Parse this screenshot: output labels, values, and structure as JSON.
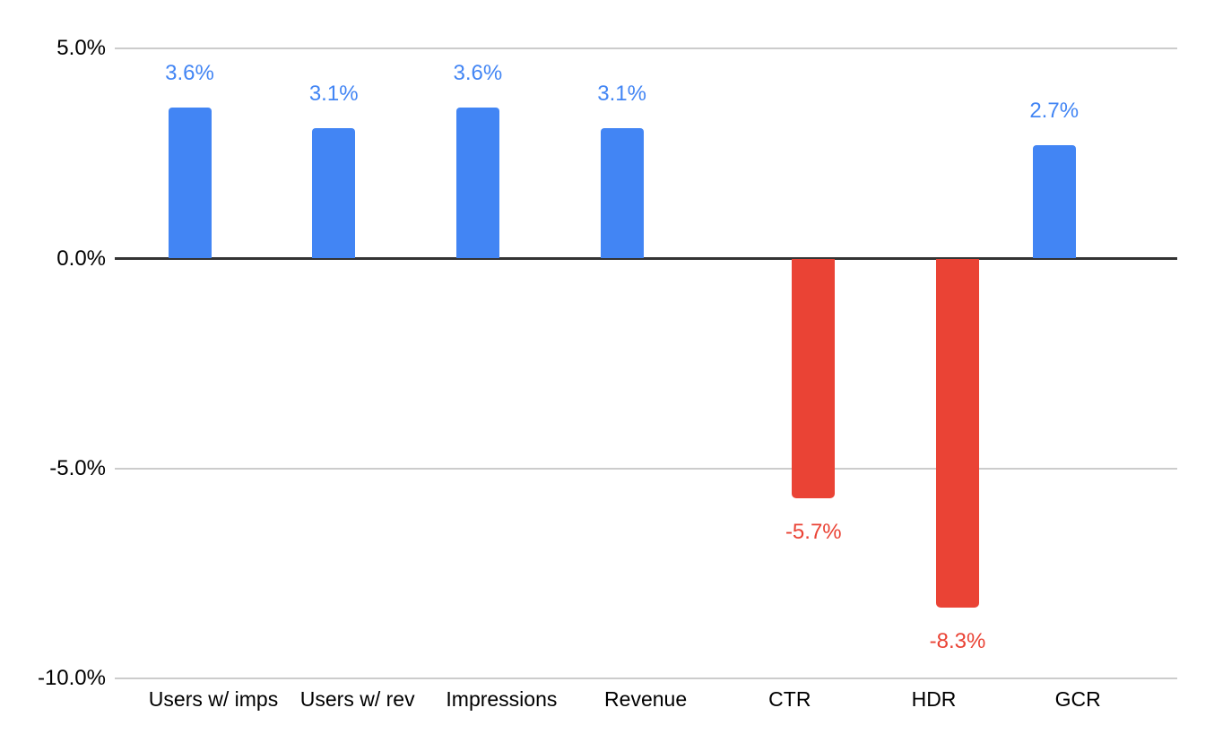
{
  "chart_data": {
    "type": "bar",
    "title": "",
    "xlabel": "",
    "ylabel": "",
    "categories": [
      "Users w/ imps",
      "Users w/ rev",
      "Impressions",
      "Revenue",
      "CTR",
      "HDR",
      "GCR"
    ],
    "values": [
      3.6,
      3.1,
      3.6,
      3.1,
      -5.7,
      -8.3,
      2.7
    ],
    "value_labels": [
      "3.6%",
      "3.1%",
      "3.6%",
      "3.1%",
      "-5.7%",
      "-8.3%",
      "2.7%"
    ],
    "ylim": [
      -10,
      5
    ],
    "y_ticks": [
      {
        "label": "5.0%",
        "value": 5
      },
      {
        "label": "0.0%",
        "value": 0
      },
      {
        "label": "-5.0%",
        "value": -5
      },
      {
        "label": "-10.0%",
        "value": -10
      }
    ],
    "grid": true,
    "legend": "none",
    "annotations": "value labels beside each bar, colored to match series",
    "colors": {
      "positive": "#4285F4",
      "negative": "#EA4335",
      "gridline": "#CCCCCC",
      "baseline": "#333333",
      "axis_text": "#000000",
      "background": "#FFFFFF"
    }
  }
}
